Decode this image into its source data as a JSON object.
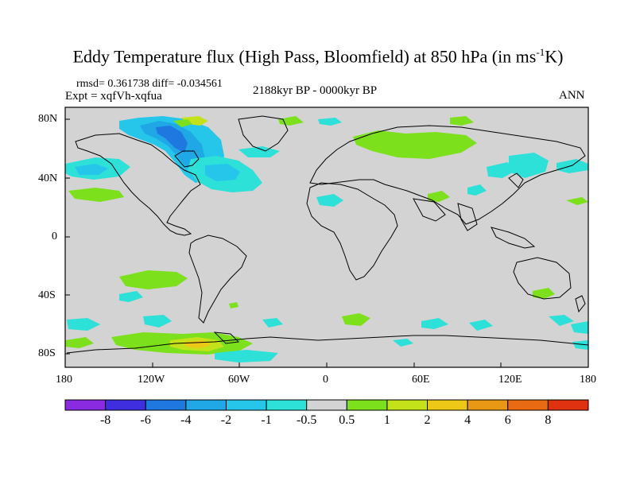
{
  "title": {
    "main": "Eddy Temperature flux (High Pass, Bloomfield) at 850 hPa (in ms",
    "sup": "-1",
    "unit_end": "K)"
  },
  "stats": "rmsd= 0.361738 diff= -0.034561",
  "experiment": "Expt = xqfVh-xqfua",
  "period": "2188kyr BP - 0000kyr BP",
  "season": "ANN",
  "axes": {
    "y_ticks": [
      "80N",
      "40N",
      "0",
      "40S",
      "80S"
    ],
    "x_ticks": [
      "180",
      "120W",
      "60W",
      "0",
      "60E",
      "120E",
      "180"
    ]
  },
  "colorbar": {
    "labels": [
      "-8",
      "-6",
      "-4",
      "-2",
      "-1",
      "-0.5",
      "0.5",
      "1",
      "2",
      "4",
      "6",
      "8"
    ],
    "colors": [
      "#8a2be2",
      "#3f2ee0",
      "#1f78e0",
      "#1fa7e6",
      "#26c6ea",
      "#2de0d8",
      "#d3d3d3",
      "#7de01c",
      "#c4e21a",
      "#eec816",
      "#e89814",
      "#e86a12",
      "#e03210"
    ]
  },
  "map": {
    "background_color": "#d3d3d3",
    "coastline_color": "#000000"
  }
}
